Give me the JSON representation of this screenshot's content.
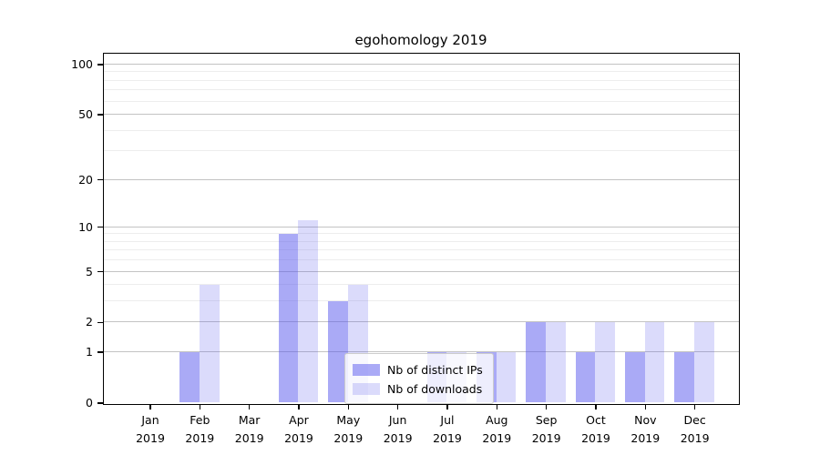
{
  "chart_data": {
    "type": "bar",
    "title": "egohomology 2019",
    "categories": [
      "Jan",
      "Feb",
      "Mar",
      "Apr",
      "May",
      "Jun",
      "Jul",
      "Aug",
      "Sep",
      "Oct",
      "Nov",
      "Dec"
    ],
    "year_label": "2019",
    "series": [
      {
        "name": "Nb of distinct IPs",
        "color": "#5555ee",
        "alpha": 0.5,
        "values": [
          0,
          1,
          0,
          9,
          3,
          0,
          1,
          1,
          2,
          1,
          1,
          1
        ]
      },
      {
        "name": "Nb of downloads",
        "color": "#5555ee",
        "alpha": 0.21,
        "values": [
          0,
          4,
          0,
          11,
          4,
          0,
          1,
          1,
          2,
          2,
          2,
          2
        ]
      }
    ],
    "xlabel": "",
    "ylabel": "",
    "yscale": "log1p",
    "ylim": [
      0,
      117
    ],
    "y_major_ticks": [
      0,
      1,
      2,
      5,
      10,
      20,
      50,
      100
    ],
    "y_minor_gridlines": [
      3,
      4,
      6,
      7,
      8,
      9,
      30,
      40,
      60,
      70,
      80,
      90
    ],
    "grid": true,
    "legend_position": "lower center"
  },
  "colors": {
    "grid_major": "#c3c3c3",
    "grid_minor": "#ededed",
    "spine": "#000000",
    "legend_border": "#cccccc"
  }
}
